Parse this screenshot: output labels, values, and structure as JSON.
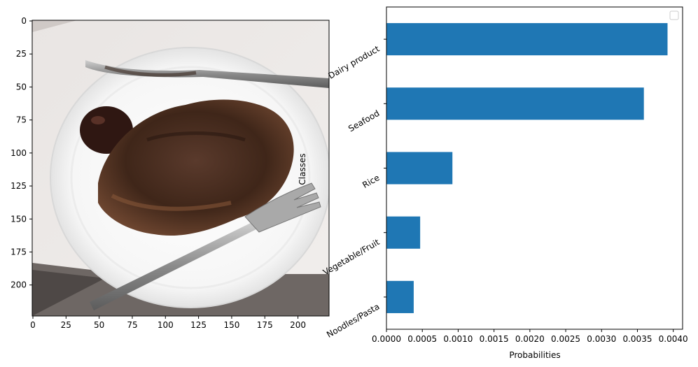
{
  "chart_data": [
    {
      "type": "image",
      "image_subject": "steak-plate-photo",
      "x_ticks": [
        "0",
        "25",
        "50",
        "75",
        "100",
        "125",
        "150",
        "175",
        "200"
      ],
      "y_ticks": [
        "0",
        "25",
        "50",
        "75",
        "100",
        "125",
        "150",
        "175",
        "200"
      ],
      "xlim": [
        0,
        224
      ],
      "ylim": [
        224,
        0
      ]
    },
    {
      "type": "bar",
      "orientation": "horizontal",
      "categories": [
        "Dairy product",
        "Seafood",
        "Rice",
        "Vegetable/Fruit",
        "Noodles/Pasta"
      ],
      "values": [
        0.00392,
        0.00359,
        0.00092,
        0.00047,
        0.00038
      ],
      "xlabel": "Probabilities",
      "ylabel": "Classes",
      "xlim": [
        0,
        0.00413
      ],
      "x_ticks": [
        "0.0000",
        "0.0005",
        "0.0010",
        "0.0015",
        "0.0020",
        "0.0025",
        "0.0030",
        "0.0035",
        "0.0040"
      ],
      "bar_color": "#1f77b4",
      "legend": "top-right",
      "grid": false
    }
  ]
}
